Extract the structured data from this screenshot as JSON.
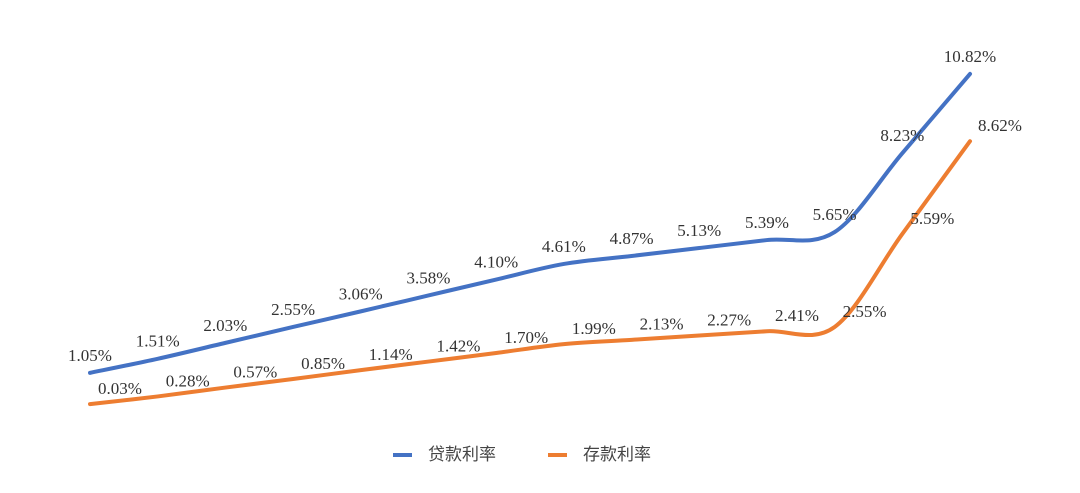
{
  "chart_data": {
    "type": "line",
    "categories": [
      null,
      null,
      null,
      null,
      null,
      null,
      null,
      null,
      null,
      null,
      null,
      null,
      null,
      null
    ],
    "series": [
      {
        "name": "贷款利率",
        "color": "#4472c4",
        "values": [
          1.05,
          1.51,
          2.03,
          2.55,
          3.06,
          3.58,
          4.1,
          4.61,
          4.87,
          5.13,
          5.39,
          5.65,
          8.23,
          10.82
        ],
        "value_labels": [
          "1.05%",
          "1.51%",
          "2.03%",
          "2.55%",
          "3.06%",
          "3.58%",
          "4.10%",
          "4.61%",
          "4.87%",
          "5.13%",
          "5.39%",
          "5.65%",
          "8.23%",
          "10.82%"
        ]
      },
      {
        "name": "存款利率",
        "color": "#ed7d31",
        "values": [
          0.03,
          0.28,
          0.57,
          0.85,
          1.14,
          1.42,
          1.7,
          1.99,
          2.13,
          2.27,
          2.41,
          2.55,
          5.59,
          8.62
        ],
        "value_labels": [
          "0.03%",
          "0.28%",
          "0.57%",
          "0.85%",
          "1.14%",
          "1.42%",
          "1.70%",
          "1.99%",
          "2.13%",
          "2.27%",
          "2.41%",
          "2.55%",
          "5.59%",
          "8.62%"
        ]
      }
    ],
    "legend": "bottom"
  }
}
